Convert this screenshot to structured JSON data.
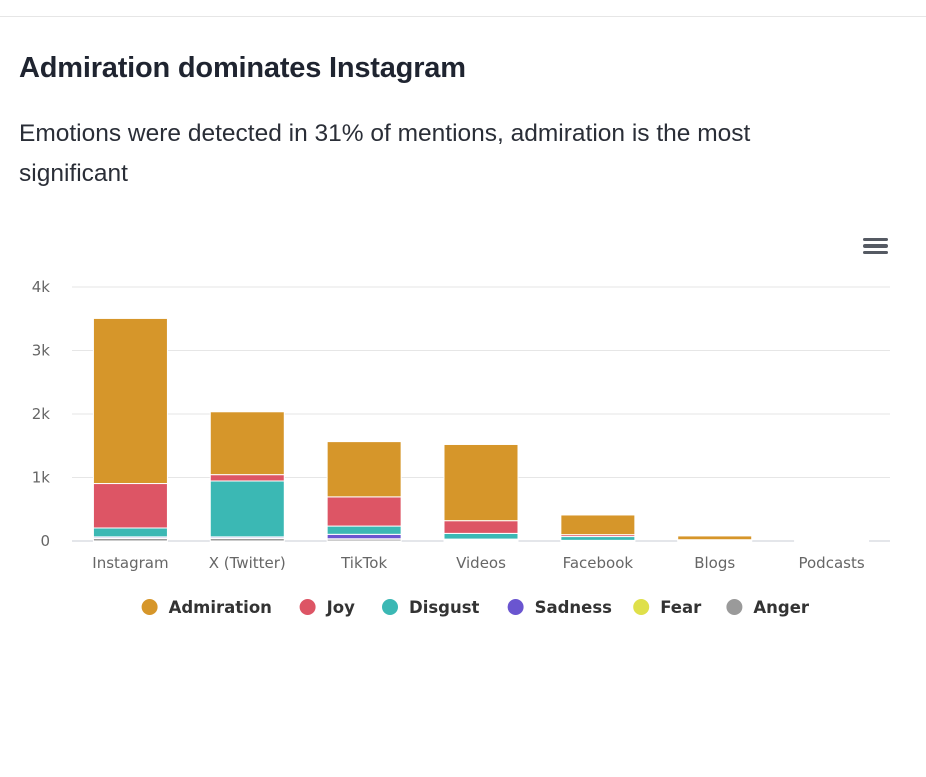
{
  "header": {
    "title": "Admiration dominates Instagram",
    "subtitle": "Emotions were detected in 31% of mentions, admiration is the most significant"
  },
  "menu": {
    "icon": "hamburger-menu-icon"
  },
  "chart_data": {
    "type": "bar",
    "stacked": true,
    "title": "Admiration dominates Instagram",
    "categories": [
      "Instagram",
      "X (Twitter)",
      "TikTok",
      "Videos",
      "Facebook",
      "Blogs",
      "Podcasts"
    ],
    "ylim": [
      0,
      4000
    ],
    "yticks": [
      0,
      1000,
      2000,
      3000,
      4000
    ],
    "ytick_labels": [
      "0",
      "1k",
      "2k",
      "3k",
      "4k"
    ],
    "grid": true,
    "legend": "bottom",
    "series": [
      {
        "name": "Anger",
        "color": "#9a9a9a",
        "values": [
          40,
          40,
          30,
          15,
          5,
          0,
          0
        ]
      },
      {
        "name": "Fear",
        "color": "#dfe04a",
        "values": [
          5,
          5,
          5,
          5,
          0,
          0,
          0
        ]
      },
      {
        "name": "Sadness",
        "color": "#6a55d0",
        "values": [
          20,
          20,
          70,
          10,
          5,
          0,
          0
        ]
      },
      {
        "name": "Disgust",
        "color": "#3bb8b4",
        "values": [
          140,
          880,
          130,
          90,
          60,
          10,
          0
        ]
      },
      {
        "name": "Joy",
        "color": "#dd5565",
        "values": [
          700,
          100,
          460,
          200,
          30,
          10,
          0
        ]
      },
      {
        "name": "Admiration",
        "color": "#d6962a",
        "values": [
          2600,
          990,
          870,
          1200,
          310,
          60,
          5
        ]
      }
    ],
    "legend_order": [
      "Admiration",
      "Joy",
      "Disgust",
      "Sadness",
      "Fear",
      "Anger"
    ]
  }
}
